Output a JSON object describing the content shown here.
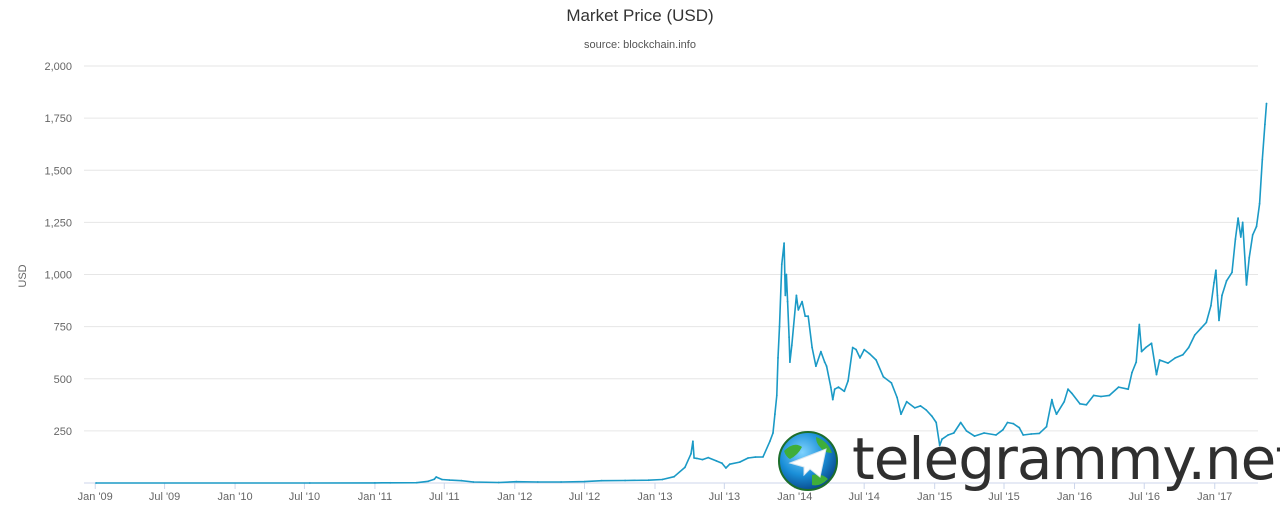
{
  "chart_data": {
    "type": "line",
    "title": "Market Price (USD)",
    "subtitle": "source: blockchain.info",
    "ylabel": "USD",
    "xlabel": "",
    "ylim": [
      0,
      2000
    ],
    "xlim": [
      "2009-01-03",
      "2017-05-20"
    ],
    "yticks": [
      {
        "value": 250,
        "label": "250"
      },
      {
        "value": 500,
        "label": "500"
      },
      {
        "value": 750,
        "label": "750"
      },
      {
        "value": 1000,
        "label": "1,000"
      },
      {
        "value": 1250,
        "label": "1,250"
      },
      {
        "value": 1500,
        "label": "1,500"
      },
      {
        "value": 1750,
        "label": "1,750"
      },
      {
        "value": 2000,
        "label": "2,000"
      }
    ],
    "xticks": [
      {
        "date": "2009-01-01",
        "label": "Jan '09"
      },
      {
        "date": "2009-07-01",
        "label": "Jul '09"
      },
      {
        "date": "2010-01-01",
        "label": "Jan '10"
      },
      {
        "date": "2010-07-01",
        "label": "Jul '10"
      },
      {
        "date": "2011-01-01",
        "label": "Jan '11"
      },
      {
        "date": "2011-07-01",
        "label": "Jul '11"
      },
      {
        "date": "2012-01-01",
        "label": "Jan '12"
      },
      {
        "date": "2012-07-01",
        "label": "Jul '12"
      },
      {
        "date": "2013-01-01",
        "label": "Jan '13"
      },
      {
        "date": "2013-07-01",
        "label": "Jul '13"
      },
      {
        "date": "2014-01-01",
        "label": "Jan '14"
      },
      {
        "date": "2014-07-01",
        "label": "Jul '14"
      },
      {
        "date": "2015-01-01",
        "label": "Jan '15"
      },
      {
        "date": "2015-07-01",
        "label": "Jul '15"
      },
      {
        "date": "2016-01-01",
        "label": "Jan '16"
      },
      {
        "date": "2016-07-01",
        "label": "Jul '16"
      },
      {
        "date": "2017-01-01",
        "label": "Jan '17"
      }
    ],
    "grid": true,
    "legend": "none",
    "series": [
      {
        "color": "#1b9ac6",
        "points": [
          [
            "2009-01-03",
            0
          ],
          [
            "2010-07-15",
            0.05
          ],
          [
            "2011-01-01",
            0.3
          ],
          [
            "2011-02-10",
            1
          ],
          [
            "2011-04-20",
            1.5
          ],
          [
            "2011-05-20",
            8
          ],
          [
            "2011-06-05",
            18
          ],
          [
            "2011-06-10",
            29
          ],
          [
            "2011-06-25",
            17
          ],
          [
            "2011-07-15",
            14
          ],
          [
            "2011-08-15",
            11
          ],
          [
            "2011-09-15",
            5
          ],
          [
            "2011-11-20",
            2.5
          ],
          [
            "2012-01-05",
            6
          ],
          [
            "2012-03-01",
            5
          ],
          [
            "2012-05-01",
            5
          ],
          [
            "2012-07-01",
            6.5
          ],
          [
            "2012-08-15",
            11
          ],
          [
            "2012-10-15",
            12
          ],
          [
            "2012-12-15",
            13.5
          ],
          [
            "2013-01-20",
            17
          ],
          [
            "2013-02-20",
            30
          ],
          [
            "2013-03-20",
            75
          ],
          [
            "2013-04-05",
            140
          ],
          [
            "2013-04-10",
            200
          ],
          [
            "2013-04-13",
            120
          ],
          [
            "2013-04-20",
            118
          ],
          [
            "2013-05-05",
            112
          ],
          [
            "2013-05-20",
            122
          ],
          [
            "2013-06-10",
            106
          ],
          [
            "2013-06-25",
            95
          ],
          [
            "2013-07-05",
            72
          ],
          [
            "2013-07-15",
            90
          ],
          [
            "2013-08-10",
            100
          ],
          [
            "2013-09-01",
            120
          ],
          [
            "2013-09-20",
            124
          ],
          [
            "2013-10-10",
            125
          ],
          [
            "2013-10-28",
            200
          ],
          [
            "2013-11-05",
            240
          ],
          [
            "2013-11-10",
            330
          ],
          [
            "2013-11-15",
            420
          ],
          [
            "2013-11-18",
            600
          ],
          [
            "2013-11-22",
            750
          ],
          [
            "2013-11-28",
            1050
          ],
          [
            "2013-12-04",
            1150
          ],
          [
            "2013-12-07",
            900
          ],
          [
            "2013-12-10",
            1000
          ],
          [
            "2013-12-13",
            870
          ],
          [
            "2013-12-17",
            700
          ],
          [
            "2013-12-19",
            580
          ],
          [
            "2013-12-24",
            660
          ],
          [
            "2014-01-05",
            900
          ],
          [
            "2014-01-10",
            830
          ],
          [
            "2014-01-20",
            870
          ],
          [
            "2014-01-28",
            800
          ],
          [
            "2014-02-05",
            800
          ],
          [
            "2014-02-15",
            650
          ],
          [
            "2014-02-25",
            560
          ],
          [
            "2014-03-10",
            630
          ],
          [
            "2014-03-20",
            580
          ],
          [
            "2014-03-25",
            560
          ],
          [
            "2014-04-05",
            460
          ],
          [
            "2014-04-10",
            400
          ],
          [
            "2014-04-15",
            450
          ],
          [
            "2014-04-25",
            460
          ],
          [
            "2014-05-10",
            440
          ],
          [
            "2014-05-20",
            490
          ],
          [
            "2014-06-01",
            650
          ],
          [
            "2014-06-10",
            640
          ],
          [
            "2014-06-20",
            600
          ],
          [
            "2014-07-01",
            640
          ],
          [
            "2014-07-15",
            620
          ],
          [
            "2014-08-01",
            590
          ],
          [
            "2014-08-20",
            510
          ],
          [
            "2014-09-10",
            480
          ],
          [
            "2014-09-25",
            410
          ],
          [
            "2014-10-05",
            330
          ],
          [
            "2014-10-20",
            390
          ],
          [
            "2014-11-10",
            360
          ],
          [
            "2014-11-25",
            370
          ],
          [
            "2014-12-10",
            350
          ],
          [
            "2014-12-25",
            320
          ],
          [
            "2015-01-05",
            290
          ],
          [
            "2015-01-14",
            180
          ],
          [
            "2015-01-20",
            210
          ],
          [
            "2015-02-05",
            230
          ],
          [
            "2015-02-20",
            240
          ],
          [
            "2015-03-10",
            290
          ],
          [
            "2015-03-25",
            250
          ],
          [
            "2015-04-15",
            225
          ],
          [
            "2015-05-10",
            240
          ],
          [
            "2015-06-10",
            230
          ],
          [
            "2015-06-28",
            255
          ],
          [
            "2015-07-10",
            290
          ],
          [
            "2015-07-25",
            285
          ],
          [
            "2015-08-10",
            265
          ],
          [
            "2015-08-20",
            230
          ],
          [
            "2015-09-10",
            235
          ],
          [
            "2015-10-01",
            238
          ],
          [
            "2015-10-20",
            270
          ],
          [
            "2015-11-03",
            400
          ],
          [
            "2015-11-07",
            370
          ],
          [
            "2015-11-15",
            330
          ],
          [
            "2015-12-05",
            390
          ],
          [
            "2015-12-15",
            450
          ],
          [
            "2015-12-25",
            430
          ],
          [
            "2016-01-15",
            380
          ],
          [
            "2016-02-01",
            375
          ],
          [
            "2016-02-20",
            420
          ],
          [
            "2016-03-10",
            415
          ],
          [
            "2016-04-01",
            420
          ],
          [
            "2016-04-25",
            460
          ],
          [
            "2016-05-20",
            450
          ],
          [
            "2016-05-30",
            530
          ],
          [
            "2016-06-10",
            580
          ],
          [
            "2016-06-18",
            760
          ],
          [
            "2016-06-24",
            630
          ],
          [
            "2016-07-05",
            650
          ],
          [
            "2016-07-20",
            670
          ],
          [
            "2016-08-02",
            520
          ],
          [
            "2016-08-10",
            590
          ],
          [
            "2016-09-01",
            575
          ],
          [
            "2016-09-20",
            600
          ],
          [
            "2016-10-10",
            615
          ],
          [
            "2016-10-25",
            650
          ],
          [
            "2016-11-10",
            710
          ],
          [
            "2016-11-25",
            740
          ],
          [
            "2016-12-10",
            770
          ],
          [
            "2016-12-22",
            850
          ],
          [
            "2016-12-30",
            960
          ],
          [
            "2017-01-04",
            1020
          ],
          [
            "2017-01-08",
            900
          ],
          [
            "2017-01-12",
            780
          ],
          [
            "2017-01-20",
            900
          ],
          [
            "2017-02-01",
            970
          ],
          [
            "2017-02-15",
            1010
          ],
          [
            "2017-02-24",
            1170
          ],
          [
            "2017-03-03",
            1270
          ],
          [
            "2017-03-10",
            1180
          ],
          [
            "2017-03-15",
            1250
          ],
          [
            "2017-03-25",
            950
          ],
          [
            "2017-04-01",
            1080
          ],
          [
            "2017-04-10",
            1190
          ],
          [
            "2017-04-20",
            1230
          ],
          [
            "2017-04-28",
            1340
          ],
          [
            "2017-05-05",
            1550
          ],
          [
            "2017-05-12",
            1720
          ],
          [
            "2017-05-16",
            1820
          ]
        ]
      }
    ]
  },
  "watermark": {
    "text": "telegrammy.net",
    "icon": "telegram-globe-icon"
  }
}
